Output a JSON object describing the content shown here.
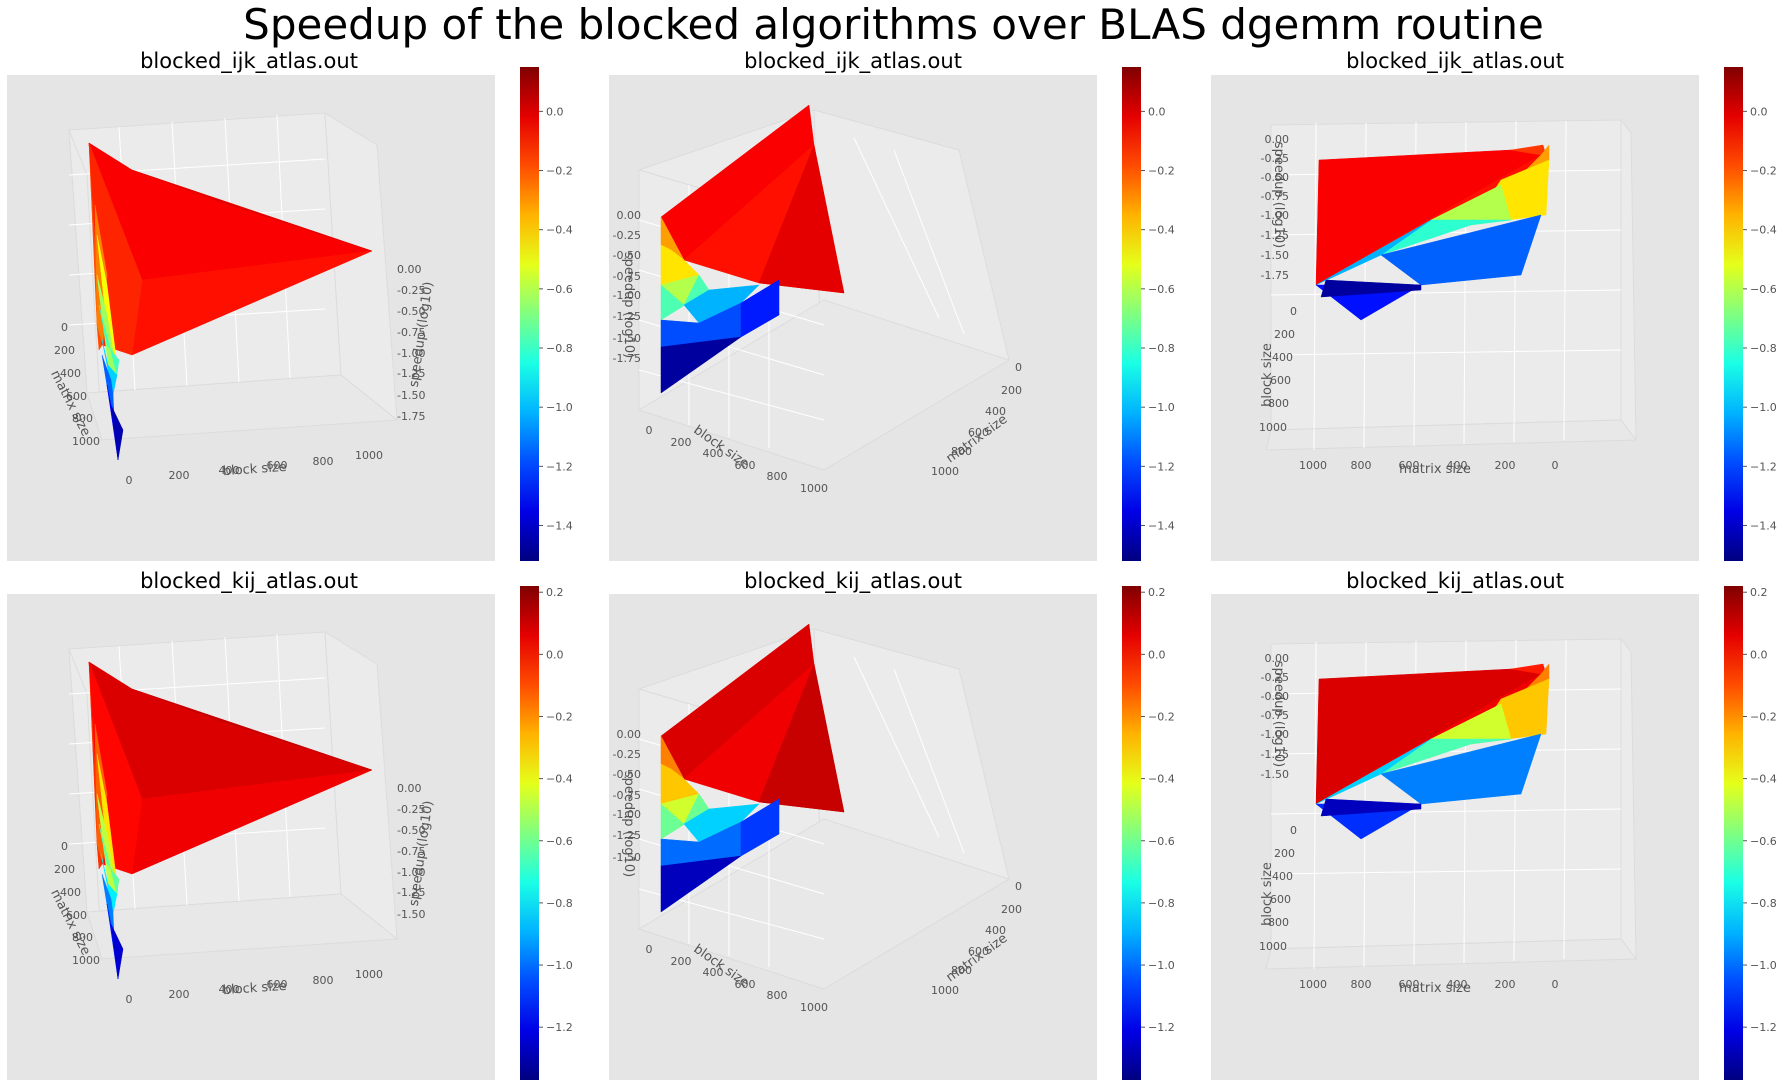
{
  "figure": {
    "title": "Speedup of the blocked algorithms over BLAS dgemm routine"
  },
  "colors": {
    "panel_bg": "#e5e5e5",
    "pane_bg": "#ebebeb",
    "grid": "#ffffff",
    "colormap": "jet"
  },
  "chart_data": [
    {
      "type": "surface3d",
      "title": "blocked_ijk_atlas.out",
      "view": "front",
      "xlabel": "matrix size",
      "ylabel": "block size",
      "zlabel": "speedup (log10)",
      "xticks": [
        "0",
        "200",
        "400",
        "600",
        "800",
        "1000"
      ],
      "yticks": [
        "0",
        "200",
        "400",
        "600",
        "800",
        "1000"
      ],
      "zticks": [
        "0.00",
        "-0.25",
        "-0.50",
        "-0.75",
        "-1.00",
        "-1.25",
        "-1.50",
        "-1.75"
      ],
      "colorbar": {
        "min": -1.52,
        "max": 0.15,
        "ticks": [
          "0.0",
          "-0.2",
          "-0.4",
          "-0.6",
          "-0.8",
          "-1.0",
          "-1.2",
          "-1.4"
        ]
      }
    },
    {
      "type": "surface3d",
      "title": "blocked_ijk_atlas.out",
      "view": "oblique",
      "xlabel": "block size",
      "ylabel": "matrix size",
      "zlabel": "speedup (log10)",
      "xticks": [
        "0",
        "200",
        "400",
        "600",
        "800",
        "1000"
      ],
      "yticks": [
        "0",
        "200",
        "400",
        "600",
        "800",
        "1000"
      ],
      "zticks": [
        "0.00",
        "-0.25",
        "-0.50",
        "-0.75",
        "-1.00",
        "-1.25",
        "-1.50",
        "-1.75"
      ],
      "colorbar": {
        "min": -1.52,
        "max": 0.15,
        "ticks": [
          "0.0",
          "-0.2",
          "-0.4",
          "-0.6",
          "-0.8",
          "-1.0",
          "-1.2",
          "-1.4"
        ]
      }
    },
    {
      "type": "surface3d",
      "title": "blocked_ijk_atlas.out",
      "view": "side",
      "xlabel": "matrix size",
      "ylabel": "block size",
      "zlabel": "speedup (log10)",
      "xticks": [
        "1000",
        "800",
        "600",
        "400",
        "200",
        "0"
      ],
      "yticks": [
        "0",
        "200",
        "400",
        "600",
        "800",
        "1000"
      ],
      "zticks": [
        "0.00",
        "-0.25",
        "-0.50",
        "-0.75",
        "-1.00",
        "-1.25",
        "-1.50",
        "-1.75"
      ],
      "colorbar": {
        "min": -1.52,
        "max": 0.15,
        "ticks": [
          "0.0",
          "-0.2",
          "-0.4",
          "-0.6",
          "-0.8",
          "-1.0",
          "-1.2",
          "-1.4"
        ]
      }
    },
    {
      "type": "surface3d",
      "title": "blocked_kij_atlas.out",
      "view": "front",
      "xlabel": "matrix size",
      "ylabel": "block size",
      "zlabel": "speedup (log10)",
      "xticks": [
        "0",
        "200",
        "400",
        "600",
        "800",
        "1000"
      ],
      "yticks": [
        "0",
        "200",
        "400",
        "600",
        "800",
        "1000"
      ],
      "zticks": [
        "0.00",
        "-0.25",
        "-0.50",
        "-0.75",
        "-1.00",
        "-1.25",
        "-1.50"
      ],
      "colorbar": {
        "min": -1.37,
        "max": 0.22,
        "ticks": [
          "0.2",
          "0.0",
          "-0.2",
          "-0.4",
          "-0.6",
          "-0.8",
          "-1.0",
          "-1.2"
        ]
      }
    },
    {
      "type": "surface3d",
      "title": "blocked_kij_atlas.out",
      "view": "oblique",
      "xlabel": "block size",
      "ylabel": "matrix size",
      "zlabel": "speedup (log10)",
      "xticks": [
        "0",
        "200",
        "400",
        "600",
        "800",
        "1000"
      ],
      "yticks": [
        "0",
        "200",
        "400",
        "600",
        "800",
        "1000"
      ],
      "zticks": [
        "0.00",
        "-0.25",
        "-0.50",
        "-0.75",
        "-1.00",
        "-1.25",
        "-1.50"
      ],
      "colorbar": {
        "min": -1.37,
        "max": 0.22,
        "ticks": [
          "0.2",
          "0.0",
          "-0.2",
          "-0.4",
          "-0.6",
          "-0.8",
          "-1.0",
          "-1.2"
        ]
      }
    },
    {
      "type": "surface3d",
      "title": "blocked_kij_atlas.out",
      "view": "side",
      "xlabel": "matrix size",
      "ylabel": "block size",
      "zlabel": "speedup (log10)",
      "xticks": [
        "1000",
        "800",
        "600",
        "400",
        "200",
        "0"
      ],
      "yticks": [
        "0",
        "200",
        "400",
        "600",
        "800",
        "1000"
      ],
      "zticks": [
        "0.00",
        "-0.25",
        "-0.50",
        "-0.75",
        "-1.00",
        "-1.25",
        "-1.50"
      ],
      "colorbar": {
        "min": -1.37,
        "max": 0.22,
        "ticks": [
          "0.2",
          "0.0",
          "-0.2",
          "-0.4",
          "-0.6",
          "-0.8",
          "-1.0",
          "-1.2"
        ]
      }
    }
  ]
}
